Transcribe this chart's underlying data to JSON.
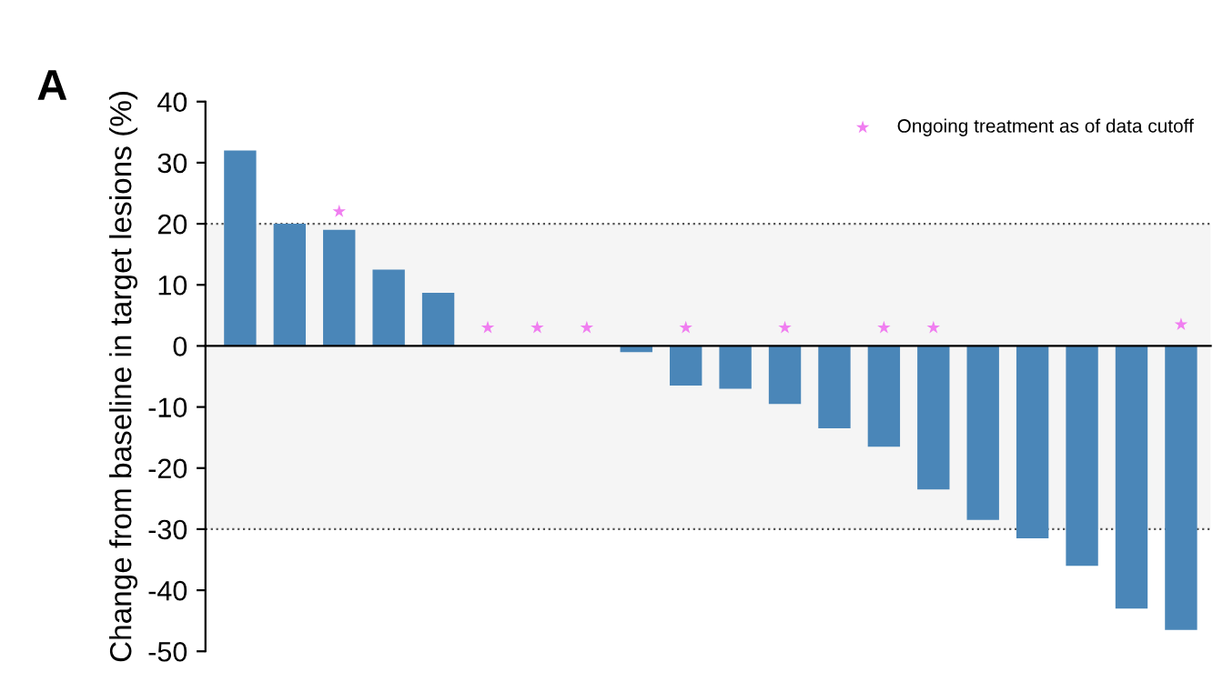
{
  "chart_data": {
    "type": "bar",
    "ylabel": "Change from baseline in target lesions (%)",
    "annotations": [
      "A"
    ],
    "categories": [
      null,
      null,
      null,
      null,
      null,
      null,
      null,
      null,
      null,
      null,
      null,
      null,
      null,
      null,
      null,
      null,
      null,
      null,
      null,
      null
    ],
    "series": [
      {
        "color": "#4a86b8",
        "values": [
          32,
          20,
          19,
          12.5,
          8.7,
          0,
          0,
          0,
          -1,
          -6.5,
          -7,
          -9.5,
          -13.5,
          -16.5,
          -23.5,
          -28.5,
          -31.5,
          -36,
          -43,
          -46.5
        ]
      },
      {
        "type": "scatter",
        "name": "Ongoing treatment as of data cutoff",
        "color": "#f07ef0",
        "marker": "star",
        "values": [
          null,
          null,
          22,
          null,
          null,
          3,
          3,
          3,
          null,
          3,
          null,
          3,
          null,
          3,
          3,
          null,
          null,
          null,
          null,
          3.5
        ]
      }
    ],
    "ylim": [
      -50,
      40
    ],
    "yticks": [
      -50,
      -40,
      -30,
      -20,
      -10,
      0,
      10,
      20,
      30,
      40
    ],
    "ref_lines": [
      {
        "axis": "y",
        "value": 20,
        "color": "#555555",
        "line_style": "dotted"
      },
      {
        "axis": "y",
        "value": -30,
        "color": "#555555",
        "line_style": "dotted"
      }
    ],
    "bands": [
      {
        "axis": "y",
        "from": -30,
        "to": 20,
        "color": "#f5f5f5"
      }
    ],
    "grid": false,
    "legend": "top right"
  }
}
